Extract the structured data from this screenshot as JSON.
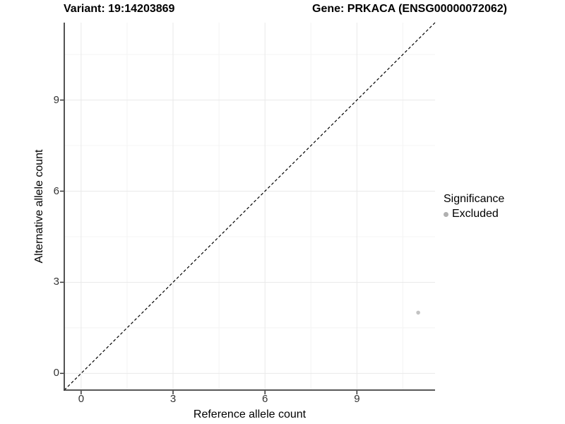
{
  "titles": {
    "variant": "Variant: 19:14203869",
    "gene": "Gene: PRKACA (ENSG00000072062)"
  },
  "axes": {
    "x_label": "Reference allele count",
    "y_label": "Alternative allele count"
  },
  "legend": {
    "title": "Significance",
    "items": [
      {
        "label": "Excluded",
        "color": "#b0b0b0"
      }
    ]
  },
  "colors": {
    "grid_major": "#e9e9e9",
    "grid_minor": "#f4f4f4",
    "axis_line": "#404040",
    "tick_mark": "#333333",
    "tick_label": "#333333",
    "point": "#c3c3c3",
    "reference_line": "#000000"
  },
  "chart_data": {
    "type": "scatter",
    "title_left": "Variant: 19:14203869",
    "title_right": "Gene: PRKACA (ENSG00000072062)",
    "xlabel": "Reference allele count",
    "ylabel": "Alternative allele count",
    "xlim": [
      -0.55,
      11.55
    ],
    "ylim": [
      -0.55,
      11.55
    ],
    "xticks": [
      0,
      3,
      6,
      9
    ],
    "yticks": [
      0,
      3,
      6,
      9
    ],
    "xminor": [
      1.5,
      4.5,
      7.5,
      10.5
    ],
    "yminor": [
      1.5,
      4.5,
      7.5,
      10.5
    ],
    "grid": "major+minor",
    "legend_position": "right",
    "legend_title": "Significance",
    "series": [
      {
        "name": "Excluded",
        "color": "#c3c3c3",
        "points": [
          {
            "x": 11,
            "y": 2
          }
        ]
      }
    ],
    "reference_line": {
      "kind": "identity",
      "slope": 1,
      "intercept": 0,
      "style": "dashed",
      "color": "#000000"
    }
  }
}
